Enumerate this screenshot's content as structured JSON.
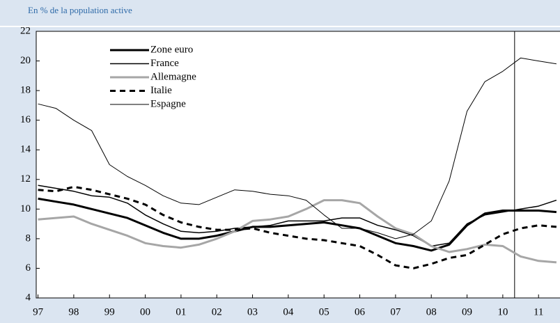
{
  "chart_data": {
    "type": "line",
    "subtitle": "En % de la population active",
    "x": [
      1997,
      1997.5,
      1998,
      1998.5,
      1999,
      1999.5,
      2000,
      2000.5,
      2001,
      2001.5,
      2002,
      2002.5,
      2003,
      2003.5,
      2004,
      2004.5,
      2005,
      2005.5,
      2006,
      2006.5,
      2007,
      2007.5,
      2008,
      2008.5,
      2009,
      2009.5,
      2010,
      2010.5,
      2011,
      2011.5
    ],
    "series": [
      {
        "name": "Zone euro",
        "color": "#000000",
        "values": [
          10.7,
          10.5,
          10.3,
          10.0,
          9.7,
          9.4,
          8.9,
          8.4,
          8.0,
          8.0,
          8.2,
          8.5,
          8.8,
          8.8,
          8.9,
          9.0,
          9.1,
          8.9,
          8.7,
          8.2,
          7.7,
          7.5,
          7.2,
          7.6,
          8.9,
          9.7,
          9.9,
          9.9,
          9.9,
          9.8
        ]
      },
      {
        "name": "France",
        "color": "#000000",
        "values": [
          11.6,
          11.4,
          11.2,
          10.9,
          10.8,
          10.4,
          9.6,
          9.0,
          8.5,
          8.4,
          8.5,
          8.7,
          8.8,
          8.9,
          9.2,
          9.2,
          9.2,
          9.4,
          9.4,
          8.9,
          8.6,
          8.2,
          7.5,
          7.7,
          9.0,
          9.6,
          9.8,
          10.0,
          10.2,
          10.6
        ]
      },
      {
        "name": "Allemagne",
        "color": "#a6a6a6",
        "values": [
          9.3,
          9.4,
          9.5,
          9.0,
          8.6,
          8.2,
          7.7,
          7.5,
          7.4,
          7.6,
          8.0,
          8.5,
          9.2,
          9.3,
          9.5,
          10.0,
          10.6,
          10.6,
          10.4,
          9.5,
          8.7,
          8.3,
          7.5,
          7.1,
          7.3,
          7.6,
          7.5,
          6.8,
          6.5,
          6.4
        ]
      },
      {
        "name": "Italie",
        "color": "#000000",
        "values": [
          11.3,
          11.2,
          11.5,
          11.3,
          11.0,
          10.7,
          10.3,
          9.6,
          9.1,
          8.8,
          8.6,
          8.6,
          8.7,
          8.4,
          8.2,
          8.0,
          7.9,
          7.7,
          7.5,
          6.9,
          6.2,
          6.0,
          6.3,
          6.7,
          6.9,
          7.6,
          8.3,
          8.7,
          8.9,
          8.8
        ]
      },
      {
        "name": "Espagne",
        "color": "#000000",
        "values": [
          17.1,
          16.8,
          16.0,
          15.3,
          13.0,
          12.2,
          11.6,
          10.9,
          10.4,
          10.3,
          10.8,
          11.3,
          11.2,
          11.0,
          10.9,
          10.6,
          9.6,
          8.7,
          8.7,
          8.4,
          8.0,
          8.3,
          9.2,
          11.9,
          16.6,
          18.6,
          19.3,
          20.2,
          20.0,
          19.8
        ]
      }
    ],
    "xlim": [
      1996.95,
      2011.6
    ],
    "xticks": [
      {
        "value": 1997,
        "label": "97"
      },
      {
        "value": 1998,
        "label": "98"
      },
      {
        "value": 1999,
        "label": "99"
      },
      {
        "value": 2000,
        "label": "00"
      },
      {
        "value": 2001,
        "label": "01"
      },
      {
        "value": 2002,
        "label": "02"
      },
      {
        "value": 2003,
        "label": "03"
      },
      {
        "value": 2004,
        "label": "04"
      },
      {
        "value": 2005,
        "label": "05"
      },
      {
        "value": 2006,
        "label": "06"
      },
      {
        "value": 2007,
        "label": "07"
      },
      {
        "value": 2008,
        "label": "08"
      },
      {
        "value": 2009,
        "label": "09"
      },
      {
        "value": 2010,
        "label": "10"
      },
      {
        "value": 2011,
        "label": "11"
      }
    ],
    "ylim": [
      4,
      22
    ],
    "yticks": [
      4,
      6,
      8,
      10,
      12,
      14,
      16,
      18,
      20,
      22
    ],
    "vline": 2010.33,
    "grid": false
  }
}
